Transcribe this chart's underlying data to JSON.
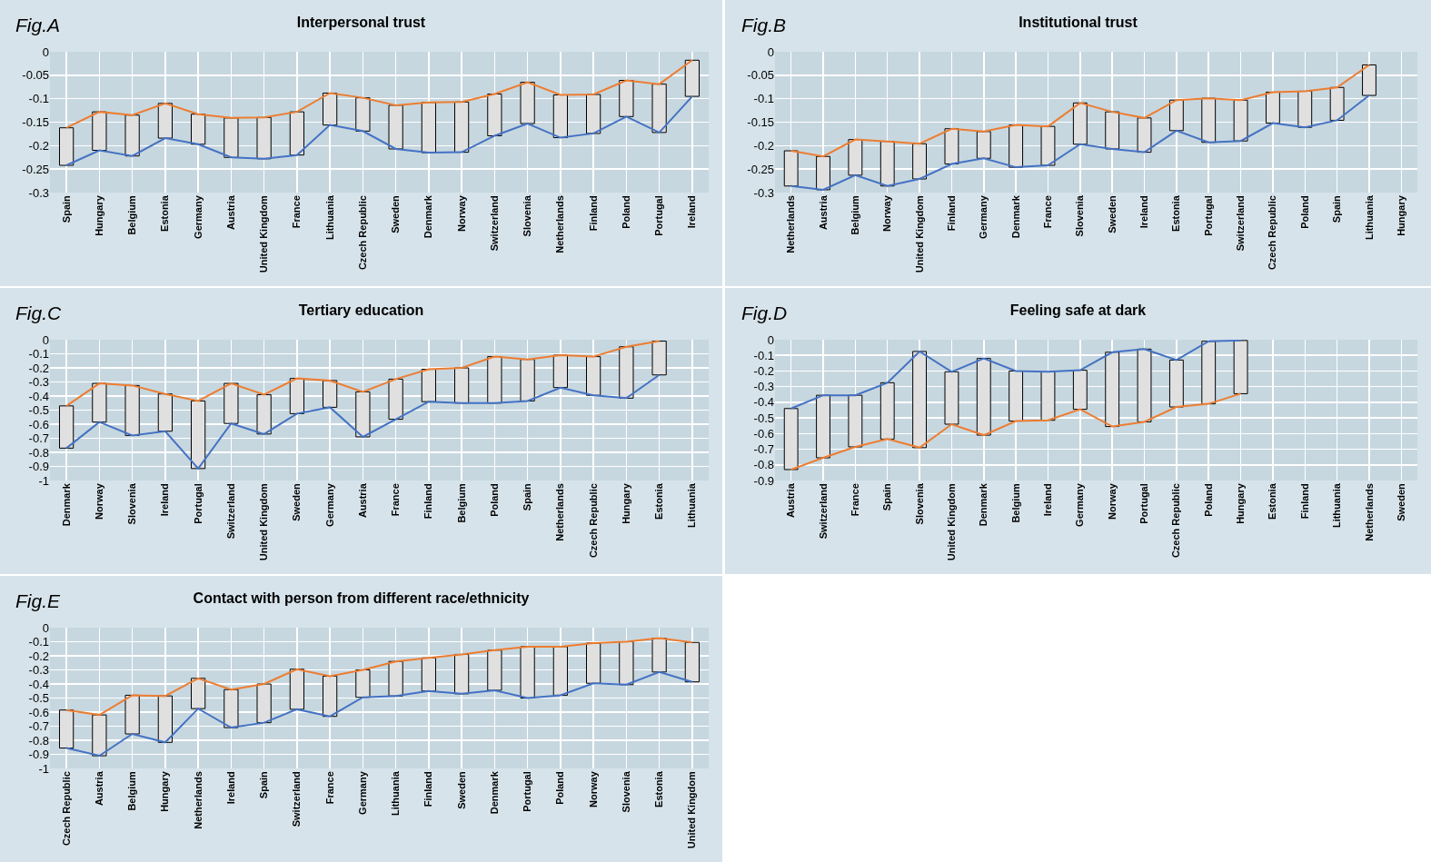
{
  "chart_data": [
    {
      "type": "line",
      "title": "Interpersonal trust",
      "annotations": [
        "Fig.A"
      ],
      "categories": [
        "Spain",
        "Hungary",
        "Belgium",
        "Estonia",
        "Germany",
        "Austria",
        "United Kingdom",
        "France",
        "Lithuania",
        "Czech Republic",
        "Sweden",
        "Denmark",
        "Norway",
        "Switzerland",
        "Slovenia",
        "Netherlands",
        "Finland",
        "Poland",
        "Portugal",
        "Ireland"
      ],
      "ylim": [
        -0.3,
        0
      ],
      "yticks": [
        -0.3,
        -0.25,
        -0.2,
        -0.15,
        -0.1,
        -0.05,
        0
      ],
      "grid": true,
      "marker": "none",
      "series": [
        {
          "type": "bar",
          "color": "#e0e0e0",
          "base": [
            -0.242,
            -0.21,
            -0.222,
            -0.184,
            -0.197,
            -0.225,
            -0.228,
            -0.22,
            -0.156,
            -0.169,
            -0.207,
            -0.215,
            -0.214,
            -0.179,
            -0.153,
            -0.183,
            -0.174,
            -0.138,
            -0.172,
            -0.095
          ],
          "values": [
            0.08,
            0.082,
            0.087,
            0.074,
            0.064,
            0.084,
            0.088,
            0.092,
            0.068,
            0.071,
            0.093,
            0.107,
            0.107,
            0.089,
            0.088,
            0.091,
            0.083,
            0.077,
            0.103,
            0.077
          ]
        },
        {
          "color": "#ed7d31",
          "values": [
            -0.162,
            -0.128,
            -0.135,
            -0.11,
            -0.133,
            -0.141,
            -0.14,
            -0.128,
            -0.088,
            -0.098,
            -0.114,
            -0.108,
            -0.107,
            -0.09,
            -0.065,
            -0.092,
            -0.091,
            -0.061,
            -0.069,
            -0.018
          ]
        },
        {
          "color": "#4472c4",
          "values": [
            -0.242,
            -0.21,
            -0.222,
            -0.184,
            -0.197,
            -0.225,
            -0.228,
            -0.22,
            -0.156,
            -0.169,
            -0.207,
            -0.215,
            -0.214,
            -0.179,
            -0.153,
            -0.183,
            -0.174,
            -0.138,
            -0.172,
            -0.095
          ]
        }
      ]
    },
    {
      "type": "line",
      "title": "Institutional trust",
      "annotations": [
        "Fig.B"
      ],
      "categories": [
        "Netherlands",
        "Austria",
        "Belgium",
        "Norway",
        "United Kingdom",
        "Finland",
        "Germany",
        "Denmark",
        "France",
        "Slovenia",
        "Sweden",
        "Ireland",
        "Estonia",
        "Portugal",
        "Switzerland",
        "Czech Republic",
        "Poland",
        "Spain",
        "Lithuania",
        "Hungary"
      ],
      "ylim": [
        -0.3,
        0
      ],
      "yticks": [
        -0.3,
        -0.25,
        -0.2,
        -0.15,
        -0.1,
        -0.05,
        0
      ],
      "grid": true,
      "marker": "none",
      "series": [
        {
          "type": "bar",
          "color": "#e0e0e0",
          "base": [
            -0.286,
            -0.294,
            -0.263,
            -0.286,
            -0.271,
            -0.239,
            -0.227,
            -0.246,
            -0.242,
            -0.197,
            -0.207,
            -0.214,
            -0.168,
            -0.193,
            -0.19,
            -0.152,
            -0.161,
            -0.146,
            -0.093,
            null
          ],
          "values": [
            0.075,
            0.071,
            0.076,
            0.095,
            0.075,
            0.075,
            0.057,
            0.09,
            0.083,
            0.088,
            0.079,
            0.073,
            0.065,
            0.094,
            0.087,
            0.066,
            0.077,
            0.07,
            0.065,
            null
          ]
        },
        {
          "color": "#ed7d31",
          "values": [
            -0.211,
            -0.223,
            -0.187,
            -0.191,
            -0.196,
            -0.164,
            -0.17,
            -0.156,
            -0.159,
            -0.109,
            -0.128,
            -0.141,
            -0.103,
            -0.099,
            -0.103,
            -0.086,
            -0.084,
            -0.076,
            -0.028,
            null
          ]
        },
        {
          "color": "#4472c4",
          "values": [
            -0.286,
            -0.294,
            -0.263,
            -0.286,
            -0.271,
            -0.239,
            -0.227,
            -0.246,
            -0.242,
            -0.197,
            -0.207,
            -0.214,
            -0.168,
            -0.193,
            -0.19,
            -0.152,
            -0.161,
            -0.146,
            -0.093,
            null
          ]
        }
      ]
    },
    {
      "type": "line",
      "title": "Tertiary education",
      "annotations": [
        "Fig.C"
      ],
      "categories": [
        "Denmark",
        "Norway",
        "Slovenia",
        "Ireland",
        "Portugal",
        "Switzerland",
        "United Kingdom",
        "Sweden",
        "Germany",
        "Austria",
        "France",
        "Finland",
        "Belgium",
        "Poland",
        "Spain",
        "Netherlands",
        "Czech Republic",
        "Hungary",
        "Estonia",
        "Lithuania"
      ],
      "ylim": [
        -1,
        0
      ],
      "yticks": [
        -1,
        -0.9,
        -0.8,
        -0.7,
        -0.6,
        -0.5,
        -0.4,
        -0.3,
        -0.2,
        -0.1,
        0
      ],
      "grid": true,
      "marker": "none",
      "series": [
        {
          "type": "bar",
          "color": "#e0e0e0",
          "base": [
            -0.77,
            -0.585,
            -0.68,
            -0.65,
            -0.915,
            -0.595,
            -0.67,
            -0.525,
            -0.48,
            -0.69,
            -0.565,
            -0.44,
            -0.45,
            -0.45,
            -0.435,
            -0.34,
            -0.395,
            -0.415,
            -0.25,
            null
          ],
          "values": [
            0.3,
            0.275,
            0.355,
            0.265,
            0.48,
            0.285,
            0.28,
            0.25,
            0.19,
            0.32,
            0.285,
            0.23,
            0.25,
            0.33,
            0.295,
            0.23,
            0.275,
            0.365,
            0.24,
            null
          ]
        },
        {
          "color": "#ed7d31",
          "values": [
            -0.47,
            -0.31,
            -0.325,
            -0.385,
            -0.435,
            -0.31,
            -0.39,
            -0.275,
            -0.29,
            -0.37,
            -0.28,
            -0.21,
            -0.2,
            -0.12,
            -0.14,
            -0.11,
            -0.12,
            -0.05,
            -0.01,
            null
          ]
        },
        {
          "color": "#4472c4",
          "values": [
            -0.77,
            -0.585,
            -0.68,
            -0.65,
            -0.915,
            -0.595,
            -0.67,
            -0.525,
            -0.48,
            -0.69,
            -0.565,
            -0.44,
            -0.45,
            -0.45,
            -0.435,
            -0.34,
            -0.395,
            -0.415,
            -0.25,
            null
          ]
        }
      ]
    },
    {
      "type": "line",
      "title": "Feeling safe at dark",
      "annotations": [
        "Fig.D"
      ],
      "categories": [
        "Austria",
        "Switzerland",
        "France",
        "Spain",
        "Slovenia",
        "United Kingdom",
        "Denmark",
        "Belgium",
        "Ireland",
        "Germany",
        "Norway",
        "Portugal",
        "Czech Republic",
        "Poland",
        "Hungary",
        "Estonia",
        "Finland",
        "Lithuania",
        "Netherlands",
        "Sweden"
      ],
      "ylim": [
        -0.9,
        0
      ],
      "yticks": [
        -0.9,
        -0.8,
        -0.7,
        -0.6,
        -0.5,
        -0.4,
        -0.3,
        -0.2,
        -0.1,
        0
      ],
      "grid": true,
      "marker": "none",
      "series": [
        {
          "type": "bar",
          "color": "#e0e0e0",
          "base": [
            -0.83,
            -0.755,
            -0.685,
            -0.635,
            -0.69,
            -0.54,
            -0.61,
            -0.52,
            -0.515,
            -0.445,
            -0.555,
            -0.525,
            -0.43,
            -0.41,
            -0.345,
            null,
            null,
            null,
            null,
            null
          ],
          "values": [
            0.39,
            0.4,
            0.33,
            0.36,
            0.615,
            0.335,
            0.49,
            0.32,
            0.31,
            0.25,
            0.475,
            0.465,
            0.3,
            0.4,
            0.34,
            null,
            null,
            null,
            null,
            null
          ]
        },
        {
          "color": "#ed7d31",
          "values": [
            -0.83,
            -0.755,
            -0.685,
            -0.635,
            -0.69,
            -0.54,
            -0.61,
            -0.52,
            -0.515,
            -0.445,
            -0.555,
            -0.525,
            -0.43,
            -0.41,
            -0.345,
            null,
            null,
            null,
            null,
            null
          ]
        },
        {
          "color": "#4472c4",
          "values": [
            -0.44,
            -0.355,
            -0.355,
            -0.275,
            -0.075,
            -0.205,
            -0.12,
            -0.2,
            -0.205,
            -0.195,
            -0.08,
            -0.06,
            -0.13,
            -0.01,
            -0.005,
            null,
            null,
            null,
            null,
            null
          ]
        }
      ]
    },
    {
      "type": "line",
      "title": "Contact with person from different race/ethnicity",
      "annotations": [
        "Fig.E"
      ],
      "categories": [
        "Czech Republic",
        "Austria",
        "Belgium",
        "Hungary",
        "Netherlands",
        "Ireland",
        "Spain",
        "Switzerland",
        "France",
        "Germany",
        "Lithuania",
        "Finland",
        "Sweden",
        "Denmark",
        "Portugal",
        "Poland",
        "Norway",
        "Slovenia",
        "Estonia",
        "United Kingdom"
      ],
      "ylim": [
        -1,
        0
      ],
      "yticks": [
        -1,
        -0.9,
        -0.8,
        -0.7,
        -0.6,
        -0.5,
        -0.4,
        -0.3,
        -0.2,
        -0.1,
        0
      ],
      "grid": true,
      "marker": "none",
      "series": [
        {
          "type": "bar",
          "color": "#e0e0e0",
          "base": [
            -0.855,
            -0.91,
            -0.755,
            -0.815,
            -0.575,
            -0.71,
            -0.675,
            -0.58,
            -0.63,
            -0.495,
            -0.485,
            -0.45,
            -0.47,
            -0.445,
            -0.5,
            -0.48,
            -0.395,
            -0.405,
            -0.315,
            -0.385
          ],
          "values": [
            0.27,
            0.29,
            0.275,
            0.33,
            0.215,
            0.27,
            0.275,
            0.285,
            0.285,
            0.195,
            0.245,
            0.235,
            0.28,
            0.285,
            0.365,
            0.345,
            0.285,
            0.305,
            0.24,
            0.28
          ]
        },
        {
          "color": "#ed7d31",
          "values": [
            -0.585,
            -0.62,
            -0.48,
            -0.485,
            -0.36,
            -0.44,
            -0.4,
            -0.295,
            -0.345,
            -0.3,
            -0.24,
            -0.215,
            -0.19,
            -0.16,
            -0.135,
            -0.135,
            -0.11,
            -0.1,
            -0.075,
            -0.105
          ]
        },
        {
          "color": "#4472c4",
          "values": [
            -0.855,
            -0.91,
            -0.755,
            -0.815,
            -0.575,
            -0.71,
            -0.675,
            -0.58,
            -0.63,
            -0.495,
            -0.485,
            -0.45,
            -0.47,
            -0.445,
            -0.5,
            -0.48,
            -0.395,
            -0.405,
            -0.315,
            -0.385
          ]
        }
      ]
    }
  ]
}
